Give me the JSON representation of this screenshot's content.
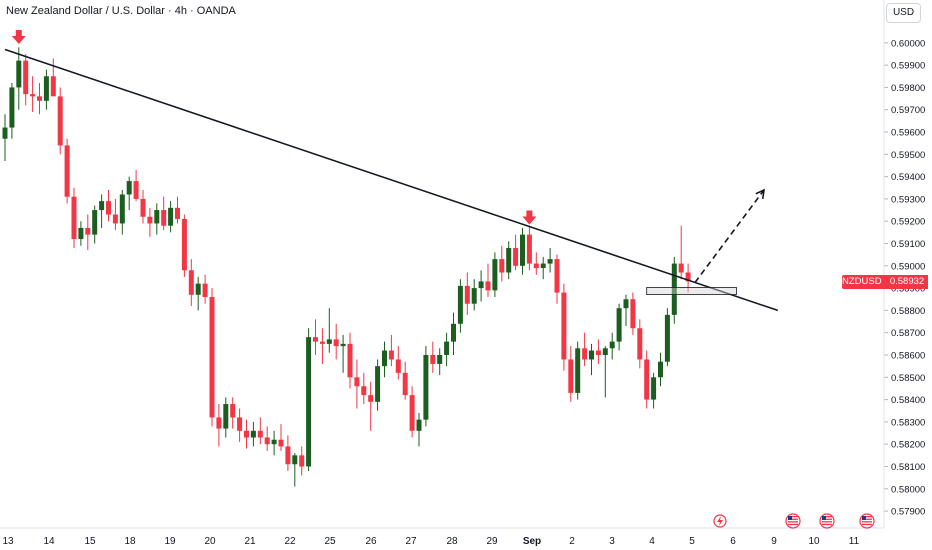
{
  "header": {
    "title": "New Zealand Dollar / U.S. Dollar · 4h · OANDA",
    "currency": "USD"
  },
  "price_tag": {
    "symbol": "NZDUSD",
    "value": "0.58932"
  },
  "colors": {
    "up": "#1b5e20",
    "down": "#f23645",
    "trend": "#131722",
    "axis": "#131722"
  },
  "icons": {
    "event_flash": "lightning-icon",
    "us_flag": "us-flag-icon"
  },
  "chart_data": {
    "type": "candlestick",
    "y_ticks": [
      "0.60000",
      "0.59900",
      "0.59800",
      "0.59700",
      "0.59600",
      "0.59500",
      "0.59400",
      "0.59300",
      "0.59200",
      "0.59100",
      "0.59000",
      "0.58900",
      "0.58800",
      "0.58700",
      "0.58600",
      "0.58500",
      "0.58400",
      "0.58300",
      "0.58200",
      "0.58100",
      "0.58000",
      "0.57900"
    ],
    "ylim": [
      0.5786,
      0.6008
    ],
    "x_ticks": [
      "13",
      "14",
      "15",
      "18",
      "19",
      "20",
      "21",
      "22",
      "25",
      "26",
      "27",
      "28",
      "29",
      "Sep",
      "2",
      "3",
      "4",
      "5",
      "6",
      "9",
      "10",
      "11"
    ],
    "candles": [
      {
        "o": 0.5957,
        "h": 0.5968,
        "l": 0.5947,
        "c": 0.5962
      },
      {
        "o": 0.5962,
        "h": 0.5982,
        "l": 0.5957,
        "c": 0.598
      },
      {
        "o": 0.598,
        "h": 0.5998,
        "l": 0.597,
        "c": 0.5992
      },
      {
        "o": 0.5992,
        "h": 0.5995,
        "l": 0.5972,
        "c": 0.5977
      },
      {
        "o": 0.5977,
        "h": 0.5985,
        "l": 0.5969,
        "c": 0.5976
      },
      {
        "o": 0.5976,
        "h": 0.5982,
        "l": 0.5968,
        "c": 0.5974
      },
      {
        "o": 0.5974,
        "h": 0.5988,
        "l": 0.597,
        "c": 0.5985
      },
      {
        "o": 0.5985,
        "h": 0.5993,
        "l": 0.5978,
        "c": 0.5976
      },
      {
        "o": 0.5976,
        "h": 0.598,
        "l": 0.595,
        "c": 0.5954
      },
      {
        "o": 0.5954,
        "h": 0.5957,
        "l": 0.5928,
        "c": 0.5931
      },
      {
        "o": 0.5931,
        "h": 0.5935,
        "l": 0.5908,
        "c": 0.5912
      },
      {
        "o": 0.5912,
        "h": 0.592,
        "l": 0.5909,
        "c": 0.5917
      },
      {
        "o": 0.5917,
        "h": 0.5923,
        "l": 0.5907,
        "c": 0.5914
      },
      {
        "o": 0.5914,
        "h": 0.5927,
        "l": 0.591,
        "c": 0.5925
      },
      {
        "o": 0.5925,
        "h": 0.5932,
        "l": 0.5917,
        "c": 0.5929
      },
      {
        "o": 0.5929,
        "h": 0.5934,
        "l": 0.592,
        "c": 0.5923
      },
      {
        "o": 0.5923,
        "h": 0.593,
        "l": 0.5916,
        "c": 0.5919
      },
      {
        "o": 0.5919,
        "h": 0.5934,
        "l": 0.5914,
        "c": 0.5932
      },
      {
        "o": 0.5932,
        "h": 0.594,
        "l": 0.5925,
        "c": 0.5938
      },
      {
        "o": 0.5938,
        "h": 0.5943,
        "l": 0.5929,
        "c": 0.593
      },
      {
        "o": 0.593,
        "h": 0.5934,
        "l": 0.5919,
        "c": 0.5922
      },
      {
        "o": 0.5922,
        "h": 0.5926,
        "l": 0.5913,
        "c": 0.5919
      },
      {
        "o": 0.5919,
        "h": 0.5928,
        "l": 0.5914,
        "c": 0.5925
      },
      {
        "o": 0.5925,
        "h": 0.5931,
        "l": 0.5916,
        "c": 0.5918
      },
      {
        "o": 0.5918,
        "h": 0.5929,
        "l": 0.5915,
        "c": 0.5926
      },
      {
        "o": 0.5926,
        "h": 0.5931,
        "l": 0.5919,
        "c": 0.5921
      },
      {
        "o": 0.5921,
        "h": 0.5923,
        "l": 0.5895,
        "c": 0.5898
      },
      {
        "o": 0.5898,
        "h": 0.5903,
        "l": 0.5882,
        "c": 0.5887
      },
      {
        "o": 0.5887,
        "h": 0.5895,
        "l": 0.588,
        "c": 0.5892
      },
      {
        "o": 0.5892,
        "h": 0.5896,
        "l": 0.5883,
        "c": 0.5886
      },
      {
        "o": 0.5886,
        "h": 0.589,
        "l": 0.5828,
        "c": 0.5832
      },
      {
        "o": 0.5832,
        "h": 0.5838,
        "l": 0.5819,
        "c": 0.5827
      },
      {
        "o": 0.5827,
        "h": 0.5841,
        "l": 0.5823,
        "c": 0.5838
      },
      {
        "o": 0.5838,
        "h": 0.5841,
        "l": 0.5827,
        "c": 0.5832
      },
      {
        "o": 0.5832,
        "h": 0.5836,
        "l": 0.5821,
        "c": 0.5826
      },
      {
        "o": 0.5826,
        "h": 0.5831,
        "l": 0.5818,
        "c": 0.5823
      },
      {
        "o": 0.5823,
        "h": 0.583,
        "l": 0.5819,
        "c": 0.5826
      },
      {
        "o": 0.5826,
        "h": 0.5832,
        "l": 0.582,
        "c": 0.5823
      },
      {
        "o": 0.5823,
        "h": 0.5828,
        "l": 0.5817,
        "c": 0.582
      },
      {
        "o": 0.582,
        "h": 0.5826,
        "l": 0.5815,
        "c": 0.5822
      },
      {
        "o": 0.5822,
        "h": 0.5829,
        "l": 0.5817,
        "c": 0.5819
      },
      {
        "o": 0.5819,
        "h": 0.5824,
        "l": 0.5808,
        "c": 0.5811
      },
      {
        "o": 0.5811,
        "h": 0.5816,
        "l": 0.5801,
        "c": 0.5815
      },
      {
        "o": 0.5815,
        "h": 0.5819,
        "l": 0.5806,
        "c": 0.581
      },
      {
        "o": 0.581,
        "h": 0.5872,
        "l": 0.5808,
        "c": 0.5868
      },
      {
        "o": 0.5868,
        "h": 0.5876,
        "l": 0.586,
        "c": 0.5866
      },
      {
        "o": 0.5866,
        "h": 0.5872,
        "l": 0.5856,
        "c": 0.5865
      },
      {
        "o": 0.5865,
        "h": 0.5881,
        "l": 0.5861,
        "c": 0.5867
      },
      {
        "o": 0.5867,
        "h": 0.5874,
        "l": 0.5858,
        "c": 0.5864
      },
      {
        "o": 0.5864,
        "h": 0.5869,
        "l": 0.5852,
        "c": 0.5865
      },
      {
        "o": 0.5865,
        "h": 0.587,
        "l": 0.5845,
        "c": 0.585
      },
      {
        "o": 0.585,
        "h": 0.5858,
        "l": 0.5836,
        "c": 0.5846
      },
      {
        "o": 0.5846,
        "h": 0.5852,
        "l": 0.5838,
        "c": 0.5842
      },
      {
        "o": 0.5842,
        "h": 0.5848,
        "l": 0.5826,
        "c": 0.5839
      },
      {
        "o": 0.5839,
        "h": 0.5858,
        "l": 0.5835,
        "c": 0.5855
      },
      {
        "o": 0.5855,
        "h": 0.5866,
        "l": 0.585,
        "c": 0.5862
      },
      {
        "o": 0.5862,
        "h": 0.5869,
        "l": 0.5855,
        "c": 0.5858
      },
      {
        "o": 0.5858,
        "h": 0.5864,
        "l": 0.5849,
        "c": 0.5852
      },
      {
        "o": 0.5852,
        "h": 0.5857,
        "l": 0.584,
        "c": 0.5842
      },
      {
        "o": 0.5842,
        "h": 0.5846,
        "l": 0.5823,
        "c": 0.5826
      },
      {
        "o": 0.5826,
        "h": 0.5834,
        "l": 0.5819,
        "c": 0.5831
      },
      {
        "o": 0.5831,
        "h": 0.5864,
        "l": 0.5828,
        "c": 0.586
      },
      {
        "o": 0.586,
        "h": 0.5866,
        "l": 0.5852,
        "c": 0.5856
      },
      {
        "o": 0.5856,
        "h": 0.5863,
        "l": 0.5851,
        "c": 0.586
      },
      {
        "o": 0.586,
        "h": 0.587,
        "l": 0.5855,
        "c": 0.5866
      },
      {
        "o": 0.5866,
        "h": 0.5879,
        "l": 0.586,
        "c": 0.5874
      },
      {
        "o": 0.5874,
        "h": 0.5894,
        "l": 0.587,
        "c": 0.5891
      },
      {
        "o": 0.5891,
        "h": 0.5897,
        "l": 0.5878,
        "c": 0.5883
      },
      {
        "o": 0.5883,
        "h": 0.5894,
        "l": 0.588,
        "c": 0.589
      },
      {
        "o": 0.589,
        "h": 0.5898,
        "l": 0.5884,
        "c": 0.5893
      },
      {
        "o": 0.5893,
        "h": 0.5901,
        "l": 0.5886,
        "c": 0.5889
      },
      {
        "o": 0.5889,
        "h": 0.5906,
        "l": 0.5886,
        "c": 0.5903
      },
      {
        "o": 0.5903,
        "h": 0.5909,
        "l": 0.5893,
        "c": 0.5897
      },
      {
        "o": 0.5897,
        "h": 0.5911,
        "l": 0.5894,
        "c": 0.5908
      },
      {
        "o": 0.5908,
        "h": 0.5914,
        "l": 0.5898,
        "c": 0.59
      },
      {
        "o": 0.59,
        "h": 0.5917,
        "l": 0.5896,
        "c": 0.5914
      },
      {
        "o": 0.5914,
        "h": 0.5918,
        "l": 0.5898,
        "c": 0.5901
      },
      {
        "o": 0.5901,
        "h": 0.5906,
        "l": 0.5896,
        "c": 0.5899
      },
      {
        "o": 0.5899,
        "h": 0.5904,
        "l": 0.5894,
        "c": 0.5901
      },
      {
        "o": 0.5901,
        "h": 0.5908,
        "l": 0.5897,
        "c": 0.5903
      },
      {
        "o": 0.5903,
        "h": 0.5905,
        "l": 0.5883,
        "c": 0.5888
      },
      {
        "o": 0.5888,
        "h": 0.5892,
        "l": 0.5853,
        "c": 0.5858
      },
      {
        "o": 0.5858,
        "h": 0.5864,
        "l": 0.5839,
        "c": 0.5843
      },
      {
        "o": 0.5843,
        "h": 0.5866,
        "l": 0.584,
        "c": 0.5863
      },
      {
        "o": 0.5863,
        "h": 0.587,
        "l": 0.5855,
        "c": 0.5858
      },
      {
        "o": 0.5858,
        "h": 0.5865,
        "l": 0.5851,
        "c": 0.5862
      },
      {
        "o": 0.5862,
        "h": 0.5867,
        "l": 0.5856,
        "c": 0.586
      },
      {
        "o": 0.586,
        "h": 0.5864,
        "l": 0.5841,
        "c": 0.5863
      },
      {
        "o": 0.5863,
        "h": 0.587,
        "l": 0.5858,
        "c": 0.5866
      },
      {
        "o": 0.5866,
        "h": 0.5883,
        "l": 0.5862,
        "c": 0.5881
      },
      {
        "o": 0.5881,
        "h": 0.5887,
        "l": 0.5873,
        "c": 0.5885
      },
      {
        "o": 0.5885,
        "h": 0.5888,
        "l": 0.5869,
        "c": 0.5872
      },
      {
        "o": 0.5872,
        "h": 0.5876,
        "l": 0.5854,
        "c": 0.5858
      },
      {
        "o": 0.5858,
        "h": 0.5862,
        "l": 0.5836,
        "c": 0.584
      },
      {
        "o": 0.584,
        "h": 0.5852,
        "l": 0.5836,
        "c": 0.585
      },
      {
        "o": 0.585,
        "h": 0.5861,
        "l": 0.5846,
        "c": 0.5857
      },
      {
        "o": 0.5857,
        "h": 0.5881,
        "l": 0.5855,
        "c": 0.5878
      },
      {
        "o": 0.5878,
        "h": 0.5904,
        "l": 0.5874,
        "c": 0.5901
      },
      {
        "o": 0.5901,
        "h": 0.5918,
        "l": 0.5894,
        "c": 0.5897
      },
      {
        "o": 0.5897,
        "h": 0.5901,
        "l": 0.5888,
        "c": 0.5893
      }
    ],
    "annotations": [
      {
        "kind": "trendline",
        "from": [
          0,
          0.5997
        ],
        "to": [
          112,
          0.588
        ]
      },
      {
        "kind": "down_arrow",
        "at": [
          2,
          0.59995
        ]
      },
      {
        "kind": "down_arrow",
        "at": [
          76,
          0.59185
        ]
      },
      {
        "kind": "zone",
        "x": [
          93,
          106
        ],
        "y": [
          0.58871,
          0.58903
        ]
      },
      {
        "kind": "dashed_arrow",
        "from": [
          100,
          0.58925
        ],
        "to": [
          110,
          0.5934
        ]
      }
    ]
  }
}
